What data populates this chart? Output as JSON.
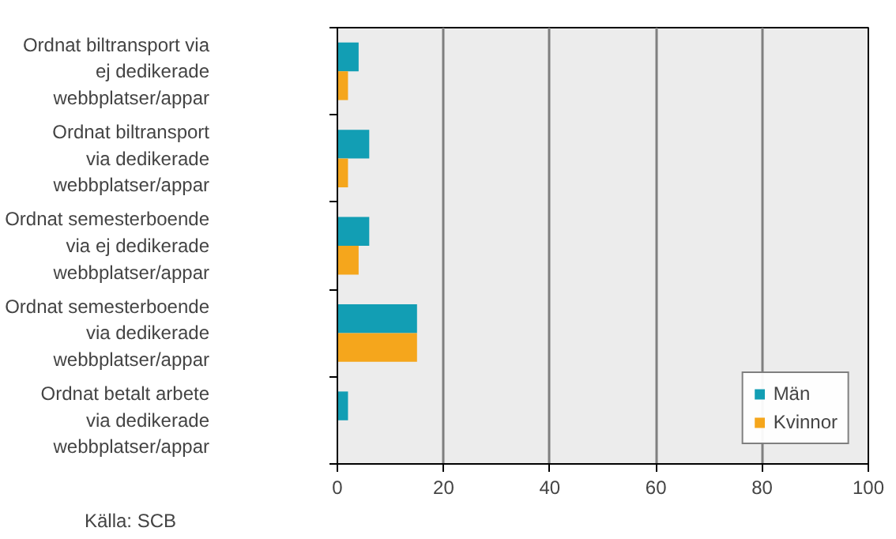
{
  "chart_data": {
    "type": "bar",
    "orientation": "horizontal",
    "categories": [
      "Ordnat biltransport via\nej dedikerade\nwebbplatser/appar",
      "Ordnat biltransport\nvia dedikerade\nwebbplatser/appar",
      "Ordnat semesterboende\nvia ej dedikerade\nwebbplatser/appar",
      "Ordnat semesterboende\nvia dedikerade\nwebbplatser/appar",
      "Ordnat betalt arbete\nvia dedikerade\nwebbplatser/appar"
    ],
    "series": [
      {
        "name": "Män",
        "color": "#129eb4",
        "values": [
          4,
          6,
          6,
          15,
          2
        ]
      },
      {
        "name": "Kvinnor",
        "color": "#f5a61c",
        "values": [
          2,
          2,
          4,
          15,
          0
        ]
      }
    ],
    "xlim": [
      0,
      100
    ],
    "xticks": [
      0,
      20,
      40,
      60,
      80,
      100
    ],
    "grid": "x",
    "legend": "bottom right",
    "annotations": [
      "Källa: SCB"
    ]
  }
}
